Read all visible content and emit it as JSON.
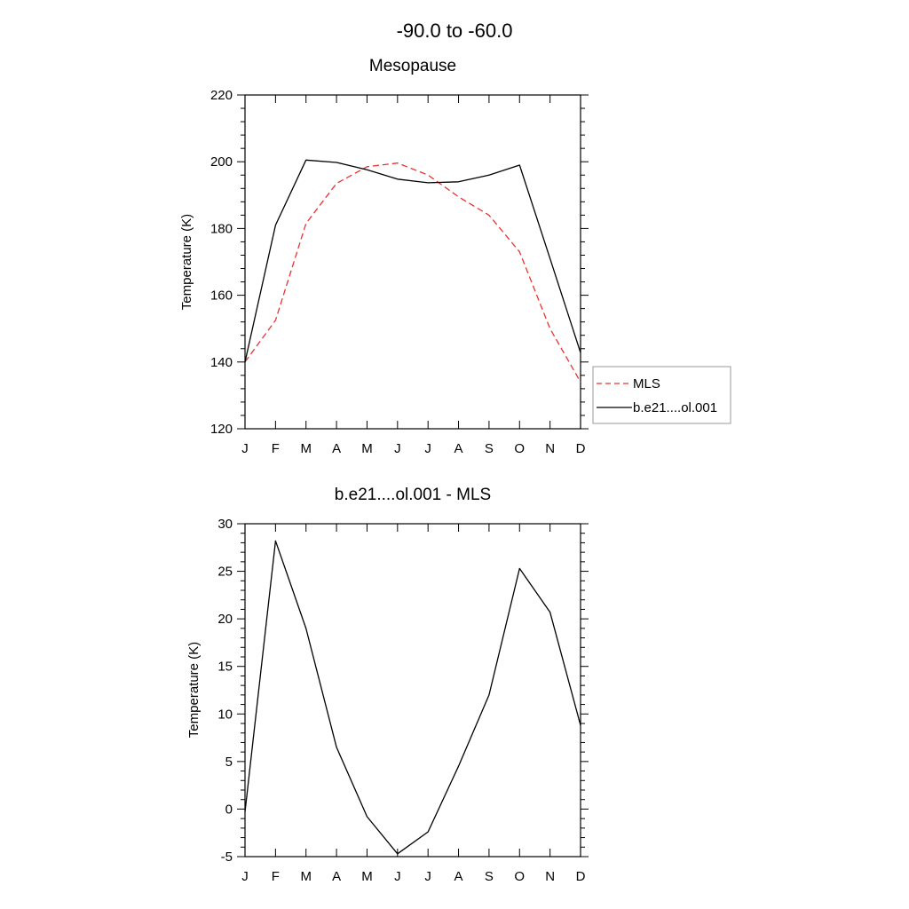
{
  "page": {
    "title": "-90.0 to -60.0"
  },
  "chart_data": [
    {
      "type": "line",
      "title": "Mesopause",
      "xlabel": "",
      "ylabel": "Temperature (K)",
      "categories": [
        "J",
        "F",
        "M",
        "A",
        "M",
        "J",
        "J",
        "A",
        "S",
        "O",
        "N",
        "D"
      ],
      "ylim": [
        120,
        220
      ],
      "yticks": [
        120,
        140,
        160,
        180,
        200,
        220
      ],
      "legend": "right",
      "series": [
        {
          "name": "MLS",
          "color": "#e8312f",
          "dash": "dashed",
          "values": [
            140.0,
            152.5,
            181.5,
            193.5,
            198.5,
            199.6,
            196.0,
            189.5,
            184.0,
            173.0,
            150.0,
            134.0
          ]
        },
        {
          "name": "b.e21....ol.001",
          "color": "#000000",
          "dash": "solid",
          "values": [
            140.0,
            181.0,
            200.5,
            199.8,
            197.6,
            194.8,
            193.7,
            194.0,
            196.0,
            199.0,
            171.0,
            142.8
          ]
        }
      ]
    },
    {
      "type": "line",
      "title": "b.e21....ol.001 - MLS",
      "xlabel": "",
      "ylabel": "Temperature (K)",
      "categories": [
        "J",
        "F",
        "M",
        "A",
        "M",
        "J",
        "J",
        "A",
        "S",
        "O",
        "N",
        "D"
      ],
      "ylim": [
        -5,
        30
      ],
      "yticks": [
        -5,
        0,
        5,
        10,
        15,
        20,
        25,
        30
      ],
      "series": [
        {
          "color": "#000000",
          "dash": "solid",
          "values": [
            -0.3,
            28.2,
            19.0,
            6.5,
            -0.8,
            -4.7,
            -2.4,
            4.5,
            12.0,
            25.3,
            20.7,
            8.8
          ]
        }
      ]
    }
  ]
}
